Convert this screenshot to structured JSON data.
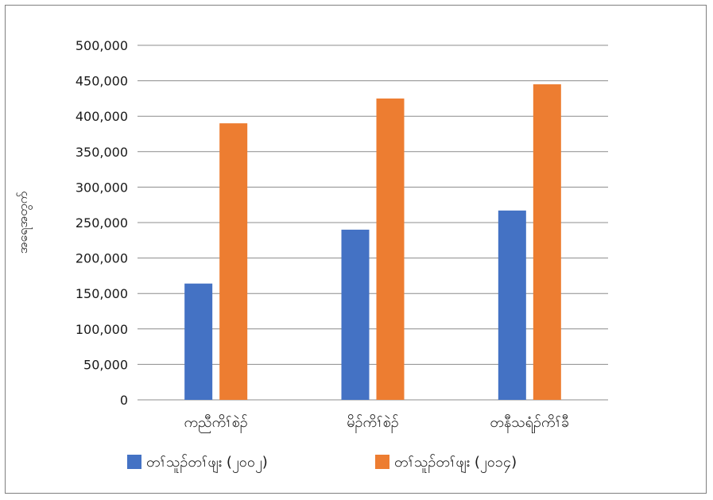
{
  "chart_data": {
    "type": "bar",
    "title": "",
    "xlabel": "",
    "ylabel": "အရေအတွက်",
    "categories": [
      "ကညီကိၢ်စဲၣ်",
      "မိၣ်ကိၢ်စဲၣ်",
      "တနီသရံၣ်ကိၢ်ခီ"
    ],
    "series": [
      {
        "name": "တၢ်သူၣ်တၢ်ဖျး (၂၀၀၂)",
        "color": "#4472c4",
        "values": [
          164000,
          240000,
          267000
        ]
      },
      {
        "name": "တၢ်သူၣ်တၢ်ဖျး (၂၀၁၄)",
        "color": "#ed7d31",
        "values": [
          390000,
          425000,
          445000
        ]
      }
    ],
    "ylim": [
      0,
      500000
    ],
    "yticks": [
      0,
      50000,
      100000,
      150000,
      200000,
      250000,
      300000,
      350000,
      400000,
      450000,
      500000
    ],
    "ytick_labels": [
      "0",
      "50,000",
      "100,000",
      "150,000",
      "200,000",
      "250,000",
      "300,000",
      "350,000",
      "400,000",
      "450,000",
      "500,000"
    ],
    "grid": true,
    "legend_position": "bottom"
  }
}
